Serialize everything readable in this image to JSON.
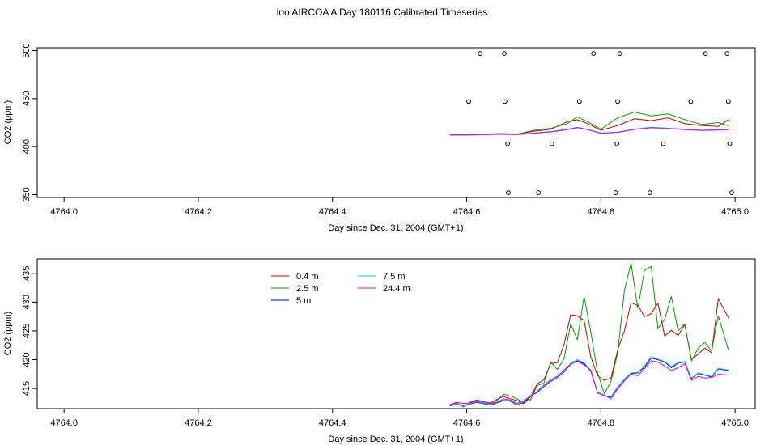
{
  "title": "loo AIRCOA A  Day 180116  Calibrated Timeseries",
  "chart_data": [
    {
      "type": "line",
      "xlabel": "Day since Dec. 31, 2004 (GMT+1)",
      "ylabel": "CO2 (ppm)",
      "xlim": [
        4763.96,
        4765.03
      ],
      "ylim": [
        347,
        503
      ],
      "xticks": [
        "4764.0",
        "4764.2",
        "4764.4",
        "4764.6",
        "4764.8",
        "4765.0"
      ],
      "xtick_values": [
        4764.0,
        4764.2,
        4764.4,
        4764.6,
        4764.8,
        4765.0
      ],
      "yticks": [
        "350",
        "400",
        "450",
        "500"
      ],
      "ytick_values": [
        350,
        400,
        450,
        500
      ],
      "colors": [
        "#cc0000",
        "#00a000",
        "#0000cc",
        "#00cccc",
        "#ee00ee"
      ],
      "series": [
        {
          "name": "0.4 m",
          "color": "#cc0000",
          "x": [
            4764.575,
            4764.6,
            4764.625,
            4764.65,
            4764.675,
            4764.7,
            4764.725,
            4764.75,
            4764.765,
            4764.78,
            4764.8,
            4764.825,
            4764.85,
            4764.875,
            4764.9,
            4764.925,
            4764.95,
            4764.975,
            4764.99
          ],
          "y": [
            412,
            412.5,
            413,
            413.5,
            413,
            416,
            418,
            426,
            428,
            424,
            417,
            422,
            429,
            427,
            430,
            424,
            422,
            421,
            428
          ]
        },
        {
          "name": "2.5 m",
          "color": "#00a000",
          "x": [
            4764.575,
            4764.6,
            4764.625,
            4764.65,
            4764.675,
            4764.7,
            4764.725,
            4764.75,
            4764.765,
            4764.78,
            4764.8,
            4764.825,
            4764.85,
            4764.875,
            4764.9,
            4764.925,
            4764.95,
            4764.975,
            4764.99
          ],
          "y": [
            412,
            412.5,
            413,
            413.5,
            413,
            417,
            419,
            424,
            431,
            426,
            418,
            430,
            436,
            432,
            434,
            428,
            423,
            425,
            422
          ]
        },
        {
          "name": "5 m",
          "color": "#0000cc",
          "x": [
            4764.575,
            4764.6,
            4764.625,
            4764.65,
            4764.675,
            4764.7,
            4764.725,
            4764.75,
            4764.765,
            4764.78,
            4764.8,
            4764.825,
            4764.85,
            4764.875,
            4764.9,
            4764.925,
            4764.95,
            4764.975,
            4764.99
          ],
          "y": [
            412,
            412,
            412.5,
            413,
            412.5,
            414,
            415.5,
            418,
            420,
            418,
            414,
            415,
            418,
            420,
            419,
            418,
            417,
            417.5,
            418
          ]
        },
        {
          "name": "7.5 m",
          "color": "#00cccc",
          "x": [
            4764.575,
            4764.6,
            4764.625,
            4764.65,
            4764.675,
            4764.7,
            4764.725,
            4764.75,
            4764.765,
            4764.78,
            4764.8,
            4764.825,
            4764.85,
            4764.875,
            4764.9,
            4764.925,
            4764.95,
            4764.975,
            4764.99
          ],
          "y": [
            412,
            412.2,
            412.6,
            413,
            412.6,
            414,
            415.5,
            418,
            420,
            418,
            414,
            415,
            418,
            420,
            419,
            418,
            417,
            417.5,
            418
          ]
        },
        {
          "name": "24.4 m",
          "color": "#ee00ee",
          "x": [
            4764.575,
            4764.6,
            4764.625,
            4764.65,
            4764.675,
            4764.7,
            4764.725,
            4764.75,
            4764.765,
            4764.78,
            4764.8,
            4764.825,
            4764.85,
            4764.875,
            4764.9,
            4764.925,
            4764.95,
            4764.975,
            4764.99
          ],
          "y": [
            412,
            412,
            412.4,
            412.8,
            412.5,
            413.8,
            415.2,
            417.6,
            419.6,
            417.6,
            413.8,
            414.8,
            417.8,
            419.6,
            418.8,
            417.6,
            416.8,
            417.2,
            417.6
          ]
        }
      ],
      "markers": {
        "style": "open-circle",
        "points": [
          {
            "x": 4764.603,
            "y": 447
          },
          {
            "x": 4764.62,
            "y": 497
          },
          {
            "x": 4764.656,
            "y": 497
          },
          {
            "x": 4764.657,
            "y": 447
          },
          {
            "x": 4764.661,
            "y": 403
          },
          {
            "x": 4764.662,
            "y": 352
          },
          {
            "x": 4764.707,
            "y": 352
          },
          {
            "x": 4764.727,
            "y": 403
          },
          {
            "x": 4764.768,
            "y": 447
          },
          {
            "x": 4764.789,
            "y": 497
          },
          {
            "x": 4764.822,
            "y": 352
          },
          {
            "x": 4764.824,
            "y": 403
          },
          {
            "x": 4764.825,
            "y": 447
          },
          {
            "x": 4764.828,
            "y": 497
          },
          {
            "x": 4764.873,
            "y": 352
          },
          {
            "x": 4764.893,
            "y": 403
          },
          {
            "x": 4764.934,
            "y": 447
          },
          {
            "x": 4764.956,
            "y": 497
          },
          {
            "x": 4764.988,
            "y": 497
          },
          {
            "x": 4764.99,
            "y": 447
          },
          {
            "x": 4764.992,
            "y": 403
          },
          {
            "x": 4764.995,
            "y": 352
          }
        ]
      },
      "grid": false
    },
    {
      "type": "line",
      "xlabel": "Day since Dec. 31, 2004 (GMT+1)",
      "ylabel": "CO2 (ppm)",
      "xlim": [
        4763.96,
        4765.03
      ],
      "ylim": [
        411.5,
        437.5
      ],
      "xticks": [
        "4764.0",
        "4764.2",
        "4764.4",
        "4764.6",
        "4764.8",
        "4765.0"
      ],
      "xtick_values": [
        4764.0,
        4764.2,
        4764.4,
        4764.6,
        4764.8,
        4765.0
      ],
      "yticks": [
        "415",
        "420",
        "425",
        "430",
        "435"
      ],
      "ytick_values": [
        415,
        420,
        425,
        430,
        435
      ],
      "legend": {
        "position": "top-left",
        "columns": 2
      },
      "series": [
        {
          "name": "0.4 m",
          "color": "#cc0000",
          "x": [
            4764.575,
            4764.585,
            4764.595,
            4764.605,
            4764.615,
            4764.625,
            4764.635,
            4764.645,
            4764.655,
            4764.665,
            4764.675,
            4764.685,
            4764.695,
            4764.705,
            4764.715,
            4764.725,
            4764.735,
            4764.745,
            4764.755,
            4764.765,
            4764.775,
            4764.785,
            4764.795,
            4764.805,
            4764.815,
            4764.825,
            4764.835,
            4764.845,
            4764.855,
            4764.865,
            4764.875,
            4764.885,
            4764.895,
            4764.905,
            4764.915,
            4764.925,
            4764.935,
            4764.945,
            4764.955,
            4764.965,
            4764.975,
            4764.99
          ],
          "y": [
            412.0,
            412.5,
            411.8,
            412.6,
            413.0,
            412.7,
            412.5,
            413.1,
            413.6,
            413.2,
            412.9,
            412.4,
            413.5,
            415.8,
            416.5,
            419.3,
            419.5,
            422.5,
            427.8,
            427.6,
            426.8,
            420.5,
            417.2,
            416.4,
            416.8,
            421.7,
            425.0,
            429.9,
            429.4,
            427.5,
            428.0,
            429.8,
            424.1,
            425.1,
            424.2,
            426.1,
            420.0,
            421.0,
            422.0,
            421.2,
            430.6,
            427.3
          ]
        },
        {
          "name": "2.5 m",
          "color": "#00a000",
          "x": [
            4764.575,
            4764.585,
            4764.595,
            4764.605,
            4764.615,
            4764.625,
            4764.635,
            4764.645,
            4764.655,
            4764.665,
            4764.675,
            4764.685,
            4764.695,
            4764.705,
            4764.715,
            4764.725,
            4764.735,
            4764.745,
            4764.755,
            4764.765,
            4764.775,
            4764.785,
            4764.795,
            4764.805,
            4764.815,
            4764.825,
            4764.835,
            4764.845,
            4764.855,
            4764.865,
            4764.875,
            4764.885,
            4764.895,
            4764.905,
            4764.915,
            4764.925,
            4764.935,
            4764.945,
            4764.955,
            4764.965,
            4764.975,
            4764.99
          ],
          "y": [
            412.0,
            412.3,
            411.9,
            412.4,
            412.8,
            412.5,
            412.3,
            412.9,
            414.0,
            413.7,
            413.2,
            412.6,
            413.0,
            415.5,
            415.9,
            419.6,
            418.3,
            420.1,
            426.2,
            423.5,
            431.0,
            424.8,
            417.8,
            414.1,
            416.2,
            421.2,
            432.0,
            436.8,
            428.9,
            435.5,
            436.2,
            425.4,
            427.0,
            431.0,
            425.0,
            426.2,
            419.8,
            422.0,
            423.0,
            421.5,
            427.6,
            421.7
          ]
        },
        {
          "name": "5 m",
          "color": "#0000cc",
          "x": [
            4764.575,
            4764.585,
            4764.595,
            4764.605,
            4764.615,
            4764.625,
            4764.635,
            4764.645,
            4764.655,
            4764.665,
            4764.675,
            4764.685,
            4764.695,
            4764.705,
            4764.715,
            4764.725,
            4764.735,
            4764.745,
            4764.755,
            4764.765,
            4764.775,
            4764.785,
            4764.795,
            4764.805,
            4764.815,
            4764.825,
            4764.835,
            4764.845,
            4764.855,
            4764.865,
            4764.875,
            4764.885,
            4764.895,
            4764.905,
            4764.915,
            4764.925,
            4764.935,
            4764.945,
            4764.955,
            4764.965,
            4764.975,
            4764.99
          ],
          "y": [
            412.0,
            412.2,
            412.0,
            412.3,
            412.6,
            412.4,
            412.1,
            412.5,
            412.9,
            412.8,
            412.1,
            412.6,
            413.7,
            414.3,
            415.3,
            416.2,
            416.9,
            417.8,
            419.2,
            419.8,
            419.3,
            418.0,
            414.3,
            413.7,
            413.5,
            415.2,
            416.5,
            417.6,
            417.7,
            418.7,
            420.3,
            420.0,
            419.6,
            418.6,
            419.4,
            419.6,
            416.7,
            417.6,
            417.3,
            417.0,
            418.4,
            418.1
          ]
        },
        {
          "name": "7.5 m",
          "color": "#00cccc",
          "x": [
            4764.575,
            4764.585,
            4764.595,
            4764.605,
            4764.615,
            4764.625,
            4764.635,
            4764.645,
            4764.655,
            4764.665,
            4764.675,
            4764.685,
            4764.695,
            4764.705,
            4764.715,
            4764.725,
            4764.735,
            4764.745,
            4764.755,
            4764.765,
            4764.775,
            4764.785,
            4764.795,
            4764.805,
            4764.815,
            4764.825,
            4764.835,
            4764.845,
            4764.855,
            4764.865,
            4764.875,
            4764.885,
            4764.895,
            4764.905,
            4764.915,
            4764.925,
            4764.935,
            4764.945,
            4764.955,
            4764.965,
            4764.975,
            4764.99
          ],
          "y": [
            412.1,
            412.3,
            411.9,
            412.4,
            412.7,
            412.5,
            412.2,
            412.6,
            413.0,
            412.9,
            412.2,
            412.7,
            413.8,
            414.4,
            415.4,
            416.3,
            417.0,
            417.9,
            419.4,
            420.0,
            419.5,
            418.1,
            414.4,
            413.8,
            413.6,
            415.3,
            416.6,
            417.7,
            417.8,
            418.9,
            420.5,
            420.1,
            419.7,
            418.8,
            419.5,
            419.7,
            416.8,
            417.7,
            417.4,
            417.1,
            418.5,
            418.2
          ]
        },
        {
          "name": "24.4 m",
          "color": "#ee00ee",
          "x": [
            4764.575,
            4764.585,
            4764.595,
            4764.605,
            4764.615,
            4764.625,
            4764.635,
            4764.645,
            4764.655,
            4764.665,
            4764.675,
            4764.685,
            4764.695,
            4764.705,
            4764.715,
            4764.725,
            4764.735,
            4764.745,
            4764.755,
            4764.765,
            4764.775,
            4764.785,
            4764.795,
            4764.805,
            4764.815,
            4764.825,
            4764.835,
            4764.845,
            4764.855,
            4764.865,
            4764.875,
            4764.885,
            4764.895,
            4764.905,
            4764.915,
            4764.925,
            4764.935,
            4764.945,
            4764.955,
            4764.965,
            4764.975,
            4764.99
          ],
          "y": [
            412.2,
            412.6,
            412.4,
            412.5,
            412.8,
            412.7,
            412.4,
            412.6,
            413.2,
            413.0,
            412.4,
            412.9,
            413.6,
            414.5,
            415.6,
            416.5,
            417.1,
            418.2,
            419.2,
            419.7,
            419.1,
            418.2,
            414.2,
            413.8,
            413.2,
            414.9,
            416.3,
            417.5,
            417.2,
            418.4,
            419.8,
            419.6,
            418.9,
            418.1,
            418.6,
            419.3,
            416.4,
            417.1,
            416.8,
            416.9,
            417.5,
            417.3
          ]
        }
      ],
      "grid": false
    }
  ]
}
